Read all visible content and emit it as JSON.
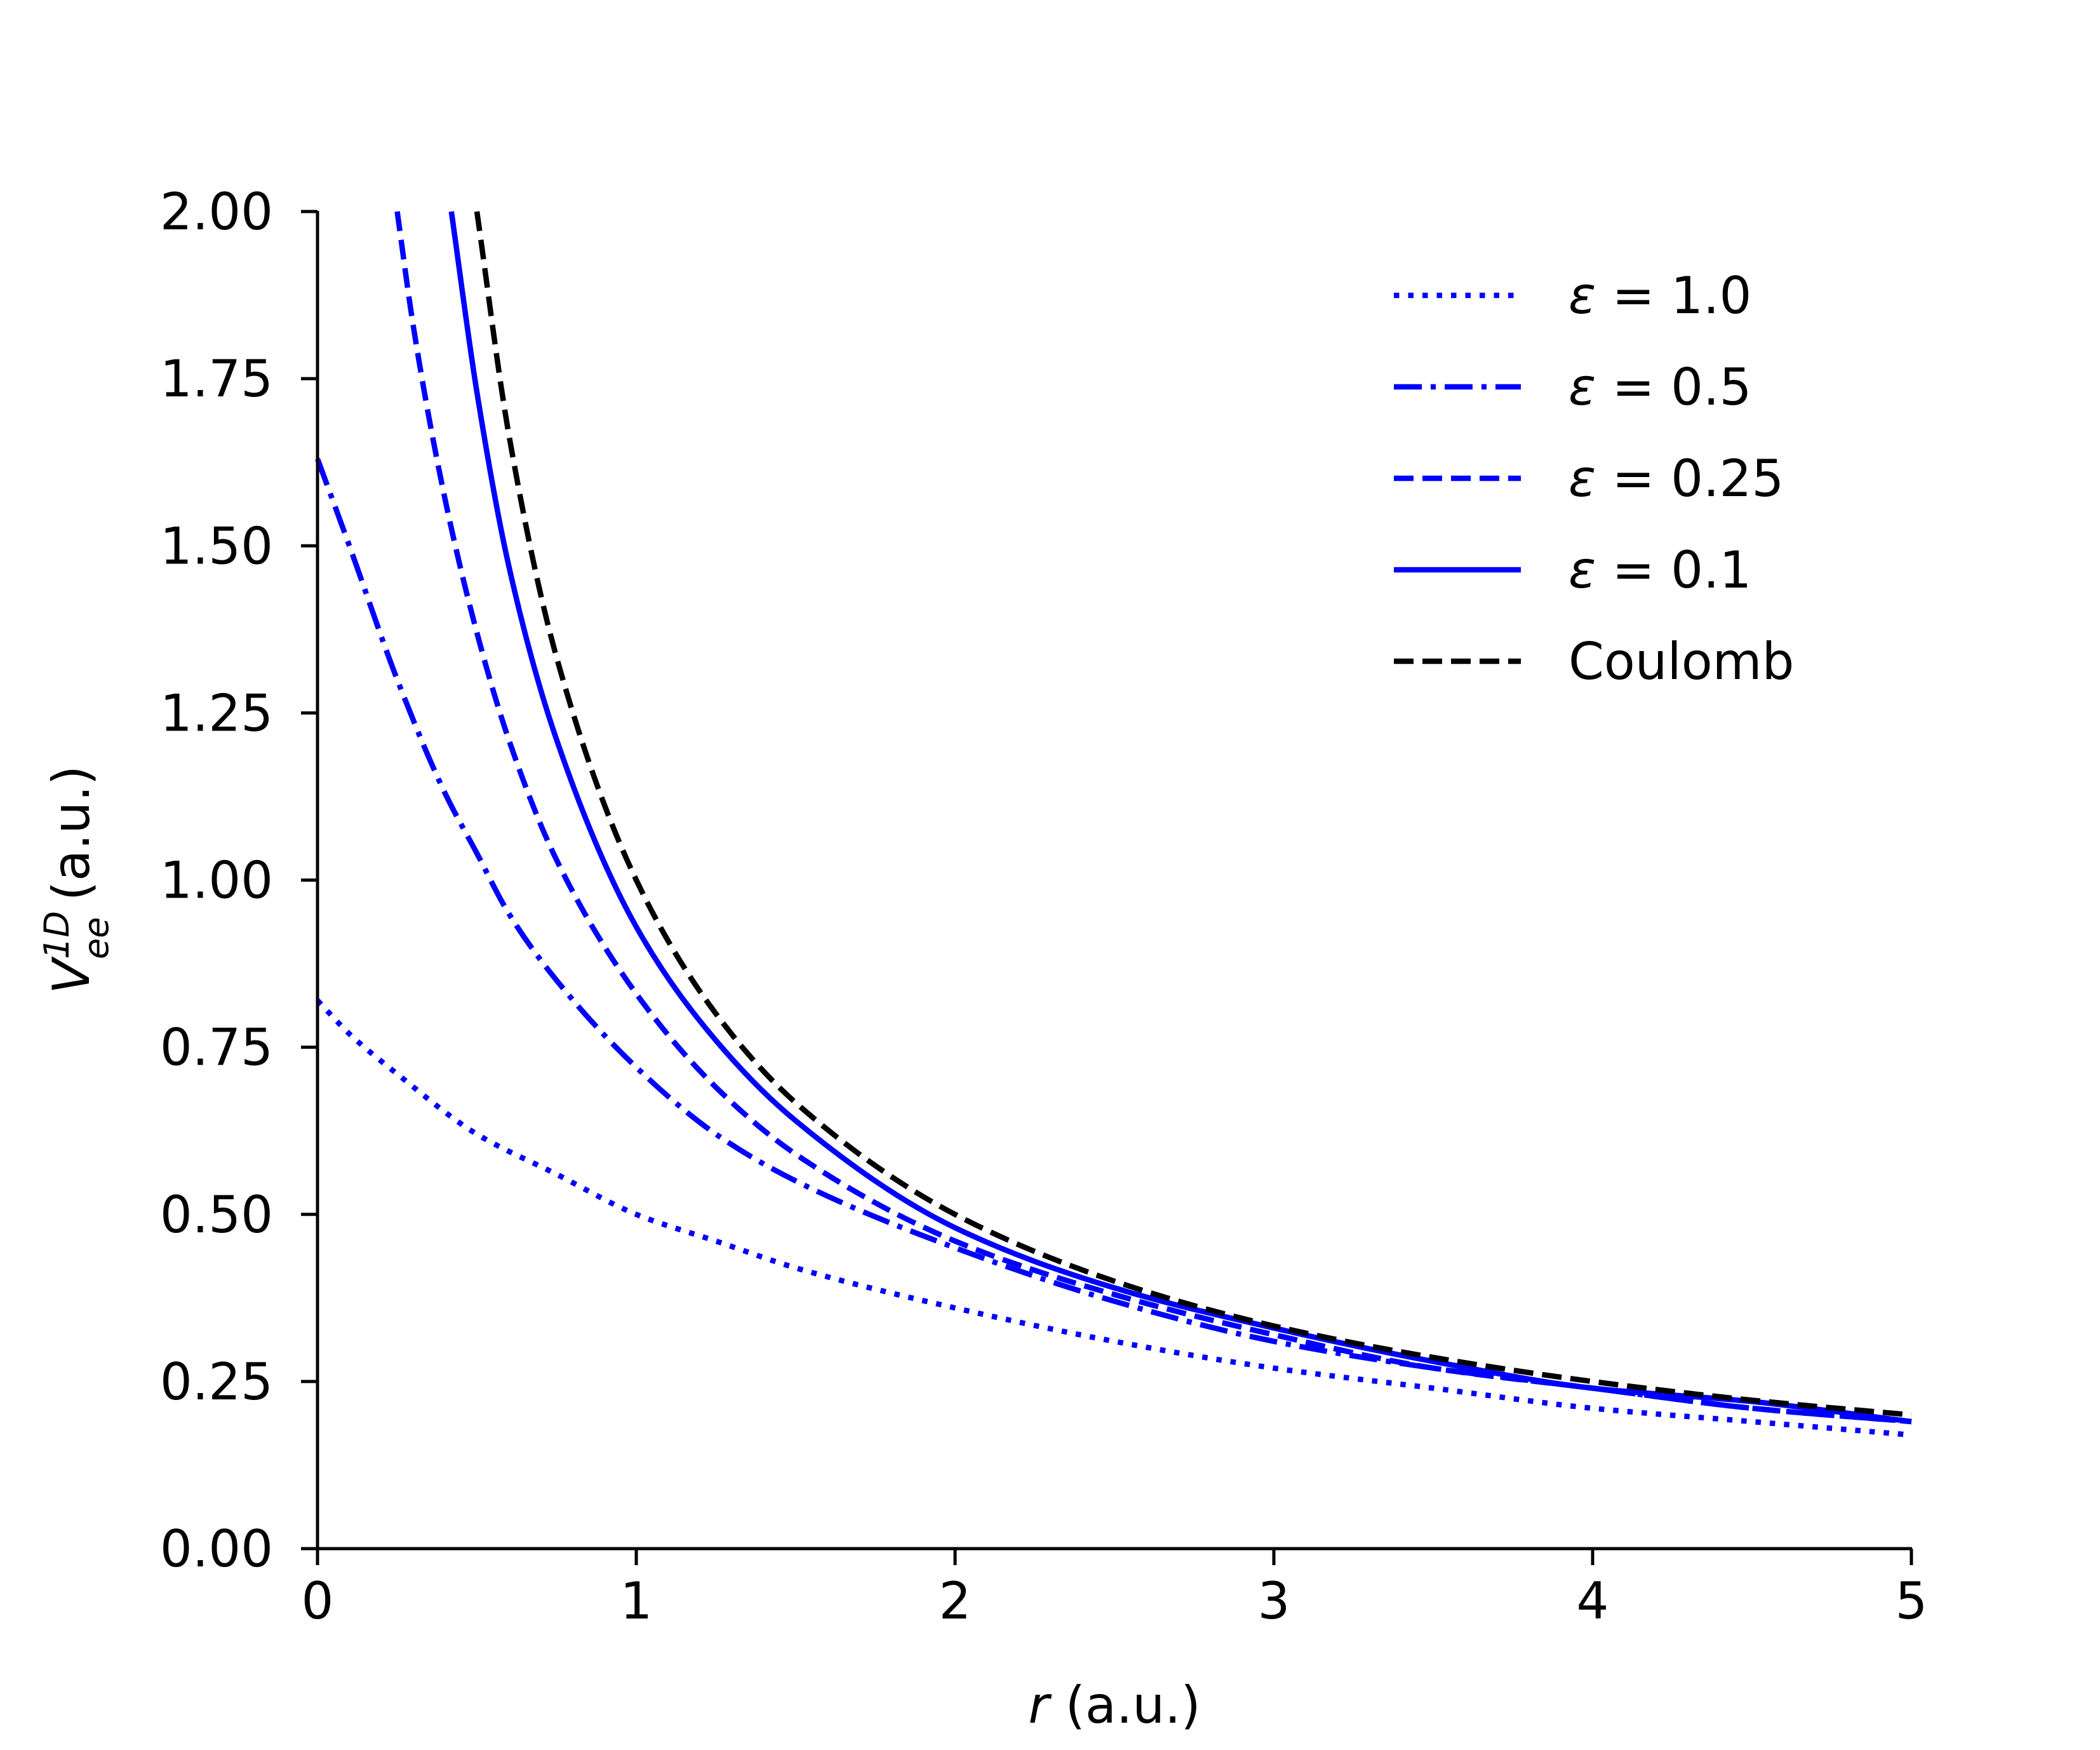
{
  "chart_data": {
    "type": "line",
    "xlabel": {
      "var": "r",
      "unit": " (a.u.)"
    },
    "ylabel": {
      "var": "V",
      "sup": "1D",
      "sub": "ee",
      "unit": " (a.u.)"
    },
    "xlim": [
      0,
      5
    ],
    "ylim": [
      0,
      2
    ],
    "x_ticks": [
      {
        "v": 0,
        "label": "0"
      },
      {
        "v": 1,
        "label": "1"
      },
      {
        "v": 2,
        "label": "2"
      },
      {
        "v": 3,
        "label": "3"
      },
      {
        "v": 4,
        "label": "4"
      },
      {
        "v": 5,
        "label": "5"
      }
    ],
    "y_ticks": [
      {
        "v": 0,
        "label": "0.00"
      },
      {
        "v": 0.25,
        "label": "0.25"
      },
      {
        "v": 0.5,
        "label": "0.50"
      },
      {
        "v": 0.75,
        "label": "0.75"
      },
      {
        "v": 1.0,
        "label": "1.00"
      },
      {
        "v": 1.25,
        "label": "1.25"
      },
      {
        "v": 1.5,
        "label": "1.50"
      },
      {
        "v": 1.75,
        "label": "1.75"
      },
      {
        "v": 2.0,
        "label": "2.00"
      }
    ],
    "grid": false,
    "legend_position": "top-right",
    "series": [
      {
        "name": "ε = 1.0",
        "symbol": "ε",
        "value": "= 1.0",
        "color": "#0000ff",
        "style": "dotted",
        "x": [
          0,
          0.1,
          0.25,
          0.5,
          0.75,
          1,
          1.25,
          1.5,
          2,
          2.5,
          3,
          3.5,
          4,
          4.5,
          5
        ],
        "y": [
          0.82,
          0.77,
          0.71,
          0.62,
          0.56,
          0.5,
          0.46,
          0.42,
          0.36,
          0.31,
          0.27,
          0.24,
          0.21,
          0.19,
          0.17
        ]
      },
      {
        "name": "ε = 0.5",
        "symbol": "ε",
        "value": "= 0.5",
        "color": "#0000ff",
        "style": "dashdot",
        "x": [
          0,
          0.1,
          0.25,
          0.4,
          0.5,
          0.6,
          0.75,
          1,
          1.25,
          1.5,
          2,
          2.5,
          3,
          3.5,
          4,
          4.5,
          5
        ],
        "y": [
          1.63,
          1.5,
          1.3,
          1.13,
          1.04,
          0.95,
          0.85,
          0.72,
          0.62,
          0.55,
          0.45,
          0.37,
          0.31,
          0.27,
          0.24,
          0.21,
          0.19
        ]
      },
      {
        "name": "ε = 0.25",
        "symbol": "ε",
        "value": "= 0.25",
        "color": "#0000ff",
        "style": "dashed",
        "x": [
          0.25,
          0.3,
          0.4,
          0.5,
          0.6,
          0.75,
          1,
          1.25,
          1.5,
          2,
          2.5,
          3,
          3.5,
          4,
          4.5,
          5
        ],
        "y": [
          2.0,
          1.83,
          1.57,
          1.37,
          1.21,
          1.03,
          0.83,
          0.69,
          0.59,
          0.46,
          0.38,
          0.32,
          0.27,
          0.24,
          0.21,
          0.19
        ]
      },
      {
        "name": "ε = 0.1",
        "symbol": "ε",
        "value": "= 0.1",
        "color": "#0000ff",
        "style": "solid",
        "x": [
          0.42,
          0.5,
          0.6,
          0.75,
          1,
          1.25,
          1.5,
          2,
          2.5,
          3,
          3.5,
          4,
          4.5,
          5
        ],
        "y": [
          2.0,
          1.73,
          1.47,
          1.21,
          0.93,
          0.76,
          0.64,
          0.48,
          0.39,
          0.33,
          0.28,
          0.24,
          0.22,
          0.19
        ]
      },
      {
        "name": "Coulomb",
        "symbol": "",
        "value": "Coulomb",
        "color": "#000000",
        "style": "dashed",
        "x": [
          0.5,
          0.6,
          0.75,
          1,
          1.25,
          1.5,
          2,
          2.5,
          3,
          3.5,
          4,
          4.5,
          5
        ],
        "y": [
          2.0,
          1.667,
          1.333,
          1.0,
          0.8,
          0.667,
          0.5,
          0.4,
          0.333,
          0.286,
          0.25,
          0.222,
          0.2
        ]
      }
    ]
  }
}
